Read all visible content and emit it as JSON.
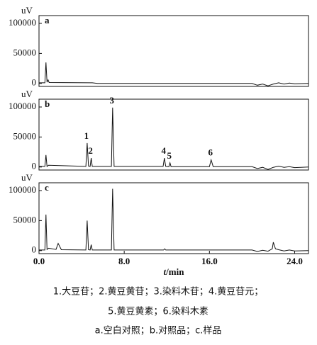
{
  "chart_data": [
    {
      "type": "line",
      "panel_label": "a",
      "y_label": "uV",
      "xlim": [
        0,
        25.3
      ],
      "ylim": [
        -5000,
        113000
      ],
      "yticks": [
        0,
        50000,
        100000
      ],
      "color": "#111111",
      "x": [
        0,
        0.55,
        0.65,
        0.75,
        0.85,
        0.95,
        5,
        5.5,
        10,
        15,
        20,
        20.5,
        21,
        21.5,
        22,
        22.5,
        23,
        23.5,
        24,
        25.3
      ],
      "values": [
        1000,
        1000,
        35000,
        2000,
        6000,
        1500,
        1000,
        0,
        0,
        0,
        0,
        -3000,
        -1000,
        -4000,
        -1000,
        1000,
        -1000,
        500,
        -500,
        0
      ]
    },
    {
      "type": "line",
      "panel_label": "b",
      "y_label": "uV",
      "xlim": [
        0,
        25.3
      ],
      "ylim": [
        -5000,
        113000
      ],
      "yticks": [
        0,
        50000,
        100000
      ],
      "color": "#111111",
      "x": [
        0,
        0.55,
        0.65,
        0.75,
        0.9,
        4.4,
        4.52,
        4.65,
        4.8,
        4.9,
        5.0,
        6.8,
        6.91,
        7.05,
        11.65,
        11.77,
        11.9,
        12.2,
        12.3,
        12.4,
        16.0,
        16.16,
        16.35,
        20,
        20.5,
        21,
        21.5,
        22,
        22.5,
        23,
        23.5,
        24,
        25.3
      ],
      "values": [
        1000,
        1000,
        20000,
        1000,
        3000,
        1000,
        40000,
        1500,
        1000,
        15000,
        1000,
        1000,
        99000,
        1000,
        1000,
        15000,
        1000,
        500,
        7000,
        500,
        500,
        12000,
        500,
        500,
        -2500,
        -500,
        -4000,
        -500,
        1500,
        -500,
        500,
        -1000,
        0
      ],
      "annotations": [
        {
          "text": "1",
          "x": 4.52
        },
        {
          "text": "2",
          "x": 4.9
        },
        {
          "text": "3",
          "x": 6.91
        },
        {
          "text": "4",
          "x": 11.77
        },
        {
          "text": "5",
          "x": 12.3
        },
        {
          "text": "6",
          "x": 16.16
        }
      ]
    },
    {
      "type": "line",
      "panel_label": "c",
      "y_label": "uV",
      "xlim": [
        0,
        25.3
      ],
      "ylim": [
        -5000,
        113000
      ],
      "yticks": [
        0,
        50000,
        100000
      ],
      "color": "#111111",
      "xticks": [
        {
          "value": 0,
          "label": "0.0"
        },
        {
          "value": 8,
          "label": "8.0"
        },
        {
          "value": 16,
          "label": "16.0"
        },
        {
          "value": 24,
          "label": "24.0"
        }
      ],
      "x_label_var": "t",
      "x_label_unit": "/min",
      "x": [
        0,
        0.55,
        0.65,
        0.75,
        0.9,
        1.6,
        1.8,
        2.1,
        4.4,
        4.52,
        4.65,
        4.8,
        4.9,
        5.0,
        6.8,
        6.91,
        7.05,
        11.7,
        11.8,
        11.9,
        20,
        20.5,
        21,
        21.5,
        21.9,
        22.0,
        22.2,
        22.5,
        23,
        23.5,
        24,
        25.3
      ],
      "values": [
        1000,
        1000,
        60000,
        2000,
        4000,
        2000,
        12000,
        1500,
        1000,
        50000,
        1500,
        1000,
        10000,
        1000,
        1000,
        103000,
        1000,
        1000,
        3000,
        1000,
        1000,
        -1500,
        500,
        -1000,
        3000,
        14000,
        3000,
        1500,
        -500,
        1000,
        -500,
        0
      ]
    }
  ],
  "caption": [
    "1.大豆苷；2.黄豆黄苷；3.染料木苷；4.黄豆苷元；",
    "5.黄豆黄素；6.染料木素",
    "a.空白对照；b.对照品；c.样品"
  ]
}
